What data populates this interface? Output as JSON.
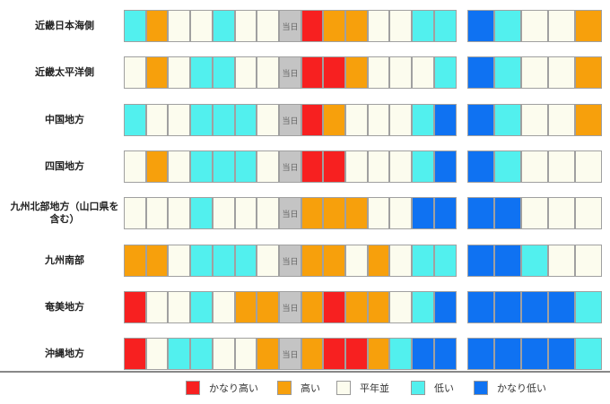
{
  "chart_data": {
    "type": "heatmap",
    "today_label": "当日",
    "legend": [
      {
        "key": "vh",
        "label": "かなり高い",
        "color": "#f72020"
      },
      {
        "key": "h",
        "label": "高い",
        "color": "#f7a00c"
      },
      {
        "key": "n",
        "label": "平年並",
        "color": "#fcfcee"
      },
      {
        "key": "l",
        "label": "低い",
        "color": "#52f0ee"
      },
      {
        "key": "vl",
        "label": "かなり低い",
        "color": "#0f72f2"
      },
      {
        "key": "t",
        "label": "",
        "color": "#c4c4c4"
      }
    ],
    "regions": [
      {
        "name": "近畿日本海側",
        "cells": [
          "l",
          "h",
          "n",
          "n",
          "l",
          "n",
          "n",
          "t",
          "vh",
          "h",
          "h",
          "n",
          "n",
          "l",
          "l",
          "vl",
          "l",
          "n",
          "n",
          "h"
        ]
      },
      {
        "name": "近畿太平洋側",
        "cells": [
          "n",
          "h",
          "n",
          "l",
          "l",
          "n",
          "n",
          "t",
          "vh",
          "vh",
          "h",
          "n",
          "n",
          "n",
          "l",
          "vl",
          "l",
          "n",
          "n",
          "h"
        ]
      },
      {
        "name": "中国地方",
        "cells": [
          "l",
          "n",
          "n",
          "l",
          "l",
          "l",
          "n",
          "t",
          "vh",
          "h",
          "n",
          "n",
          "n",
          "l",
          "vl",
          "vl",
          "l",
          "n",
          "n",
          "h"
        ]
      },
      {
        "name": "四国地方",
        "cells": [
          "n",
          "h",
          "n",
          "l",
          "l",
          "l",
          "n",
          "t",
          "vh",
          "vh",
          "n",
          "n",
          "n",
          "l",
          "vl",
          "vl",
          "l",
          "n",
          "n",
          "n"
        ]
      },
      {
        "name": "九州北部地方（山口県を含む）",
        "cells": [
          "n",
          "n",
          "n",
          "l",
          "n",
          "n",
          "n",
          "t",
          "h",
          "h",
          "h",
          "n",
          "n",
          "vl",
          "vl",
          "vl",
          "vl",
          "n",
          "n",
          "n"
        ]
      },
      {
        "name": "九州南部",
        "cells": [
          "h",
          "h",
          "n",
          "l",
          "l",
          "l",
          "n",
          "t",
          "h",
          "h",
          "n",
          "h",
          "n",
          "l",
          "l",
          "vl",
          "vl",
          "l",
          "n",
          "n"
        ]
      },
      {
        "name": "奄美地方",
        "cells": [
          "vh",
          "n",
          "n",
          "l",
          "n",
          "h",
          "h",
          "t",
          "h",
          "vh",
          "h",
          "h",
          "n",
          "l",
          "vl",
          "vl",
          "vl",
          "vl",
          "vl",
          "l"
        ]
      },
      {
        "name": "沖縄地方",
        "cells": [
          "vh",
          "n",
          "l",
          "l",
          "n",
          "n",
          "h",
          "t",
          "h",
          "vh",
          "vh",
          "h",
          "l",
          "vl",
          "vl",
          "vl",
          "vl",
          "vl",
          "vl",
          "l"
        ]
      }
    ]
  }
}
